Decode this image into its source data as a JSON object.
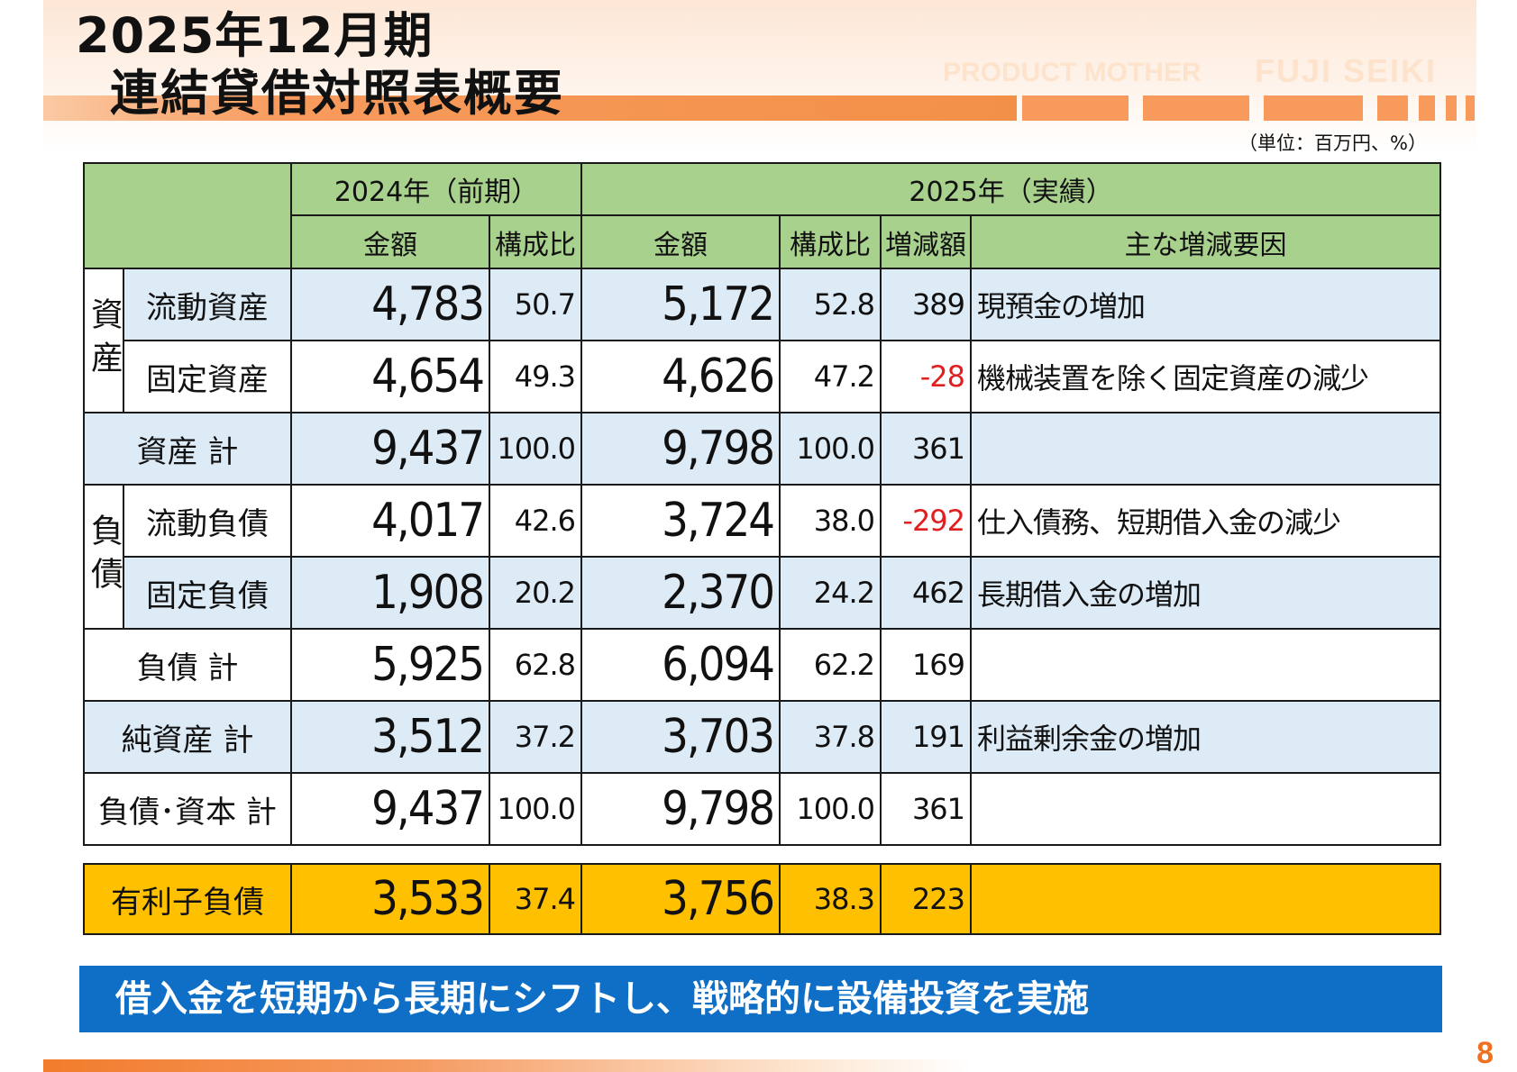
{
  "header": {
    "title_line1": "2025年12月期",
    "title_line2": "連結貸借対照表概要",
    "brand_a": "PRODUCT MOTHER",
    "brand_b": "FUJI  SEIKI",
    "unit": "（単位：百万円、%）"
  },
  "table": {
    "period_prev": "2024年（前期）",
    "period_curr": "2025年（実績）",
    "col_amount": "金額",
    "col_ratio": "構成比",
    "col_change": "増減額",
    "col_reason": "主な増減要因",
    "group_assets": "資産",
    "group_liabilities": "負債",
    "rows": [
      {
        "label": "流動資産",
        "prev_amt": "4,783",
        "prev_pct": "50.7",
        "curr_amt": "5,172",
        "curr_pct": "52.8",
        "change": "389",
        "reason": "現預金の増加"
      },
      {
        "label": "固定資産",
        "prev_amt": "4,654",
        "prev_pct": "49.3",
        "curr_amt": "4,626",
        "curr_pct": "47.2",
        "change": "-28",
        "reason": "機械装置を除く固定資産の減少"
      },
      {
        "label": "資産  計",
        "prev_amt": "9,437",
        "prev_pct": "100.0",
        "curr_amt": "9,798",
        "curr_pct": "100.0",
        "change": "361",
        "reason": ""
      },
      {
        "label": "流動負債",
        "prev_amt": "4,017",
        "prev_pct": "42.6",
        "curr_amt": "3,724",
        "curr_pct": "38.0",
        "change": "-292",
        "reason": "仕入債務、短期借入金の減少"
      },
      {
        "label": "固定負債",
        "prev_amt": "1,908",
        "prev_pct": "20.2",
        "curr_amt": "2,370",
        "curr_pct": "24.2",
        "change": "462",
        "reason": "長期借入金の増加"
      },
      {
        "label": "負債  計",
        "prev_amt": "5,925",
        "prev_pct": "62.8",
        "curr_amt": "6,094",
        "curr_pct": "62.2",
        "change": "169",
        "reason": ""
      },
      {
        "label": "純資産  計",
        "prev_amt": "3,512",
        "prev_pct": "37.2",
        "curr_amt": "3,703",
        "curr_pct": "37.8",
        "change": "191",
        "reason": "利益剰余金の増加"
      },
      {
        "label": "負債･資本  計",
        "prev_amt": "9,437",
        "prev_pct": "100.0",
        "curr_amt": "9,798",
        "curr_pct": "100.0",
        "change": "361",
        "reason": ""
      }
    ],
    "debt_row": {
      "label": "有利子負債",
      "prev_amt": "3,533",
      "prev_pct": "37.4",
      "curr_amt": "3,756",
      "curr_pct": "38.3",
      "change": "223",
      "reason": ""
    }
  },
  "message": "借入金を短期から長期にシフトし、戦略的に設備投資を実施",
  "page_number": "8",
  "colors": {
    "header_green": "#a9d18e",
    "row_blue": "#ddebf7",
    "debt_yellow": "#ffc000",
    "message_blue": "#0f6fc6",
    "negative_red": "#e02020",
    "accent_orange": "#f79a5c"
  }
}
